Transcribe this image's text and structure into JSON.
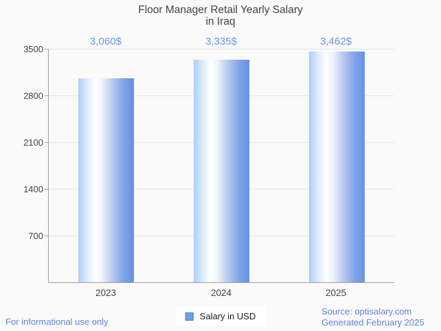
{
  "title": {
    "line1": "Floor Manager Retail Yearly Salary",
    "line2": "in Iraq"
  },
  "legend": {
    "label": "Salary in USD"
  },
  "footer": {
    "left": "For informational use only",
    "source": "Source: optisalary.com",
    "generated": "Generated February 2025"
  },
  "colors": {
    "background": "#fafafa",
    "text": "#424242",
    "axis": "#9e9e9e",
    "grid": "#e6e6e6",
    "value_label_blue": "#6b94e7",
    "footer_blue": "#5f83de",
    "legend_marker_fill": "#6d9eeb",
    "legend_marker_border": "#5a7ca6",
    "bar_gradient": [
      "#aacdf8",
      "#ffffff",
      "#6592e6"
    ]
  },
  "chart_data": {
    "type": "bar",
    "title": "Floor Manager Retail Yearly Salary in Iraq",
    "categories": [
      "2023",
      "2024",
      "2025"
    ],
    "series": [
      {
        "name": "Salary in USD",
        "values": [
          3060,
          3335,
          3462
        ]
      }
    ],
    "value_labels": [
      "3,060$",
      "3,335$",
      "3,462$"
    ],
    "xlabel": "",
    "ylabel": "",
    "ylim": [
      0,
      3500
    ],
    "yticks": [
      700,
      1400,
      2100,
      2800,
      3500
    ],
    "grid": "horizontal",
    "legend_position": "bottom"
  }
}
